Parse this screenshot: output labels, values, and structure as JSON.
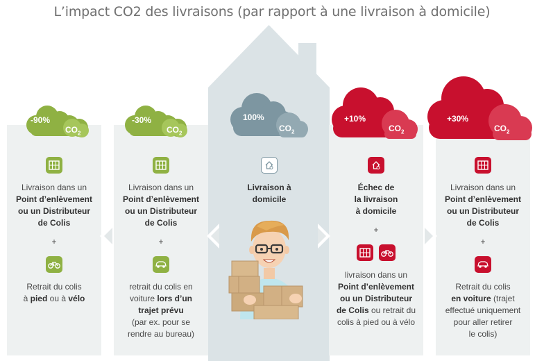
{
  "title": "L’impact CO2 des livraisons (par rapport à une livraison à domicile)",
  "colors": {
    "green": "#8fb143",
    "grey_blue": "#7d96a1",
    "red": "#c8102e",
    "card_bg": "#eef1f1",
    "house_bg": "#dbe3e6"
  },
  "cards": [
    {
      "pct": "-90%",
      "co2": "CO",
      "co2_sub": "2",
      "line1": "Livraison dans un",
      "line2": "Point d’enlèvement",
      "line3": "ou un Distributeur",
      "line4": "de Colis",
      "plus": "+",
      "icon1": "locker-icon",
      "icon2": "bicycle-icon",
      "b_line1": "Retrait du colis",
      "b_line2_a": "à ",
      "b_line2_b": "pied",
      "b_line2_c": " ou à ",
      "b_line2_d": "vélo"
    },
    {
      "pct": "-30%",
      "co2": "CO",
      "co2_sub": "2",
      "line1": "Livraison dans un",
      "line2": "Point d’enlèvement",
      "line3": "ou un Distributeur",
      "line4": "de Colis",
      "plus": "+",
      "icon1": "locker-icon",
      "icon2": "car-icon",
      "b_line1": "retrait du colis en",
      "b_line2_a": "voiture ",
      "b_line2_b": "lors d’un",
      "b_line3": "trajet prévu",
      "b_line4": "(par ex. pour se",
      "b_line5": "rendre au bureau)"
    },
    {
      "pct": "100%",
      "co2": "CO",
      "co2_sub": "2",
      "line1": "Livraison à",
      "line2": "domicile",
      "icon1": "home-delivery-icon",
      "illustration": "delivery-man-with-boxes"
    },
    {
      "pct": "+10%",
      "co2": "CO",
      "co2_sub": "2",
      "line1": "Échec de",
      "line2": "la livraison",
      "line3": "à domicile",
      "plus": "+",
      "icon1": "home-delivery-icon",
      "icon2": "locker-icon",
      "icon3": "bicycle-icon",
      "b_line1": "livraison dans un",
      "b_line2": "Point d’enlèvement",
      "b_line3": "ou un Distributeur",
      "b_line4_a": "de Colis",
      "b_line4_b": " ou retrait du",
      "b_line5": "colis à pied ou à vélo"
    },
    {
      "pct": "+30%",
      "co2": "CO",
      "co2_sub": "2",
      "line1": "Livraison dans un",
      "line2": "Point d’enlèvement",
      "line3": "ou un Distributeur",
      "line4": "de Colis",
      "plus": "+",
      "icon1": "locker-icon",
      "icon2": "car-icon",
      "b_line1": "Retrait du colis",
      "b_line2": "en voiture",
      "b_line2_rest": " (trajet",
      "b_line3": "effectué uniquement",
      "b_line4": "pour aller retirer",
      "b_line5": "le colis)"
    }
  ]
}
